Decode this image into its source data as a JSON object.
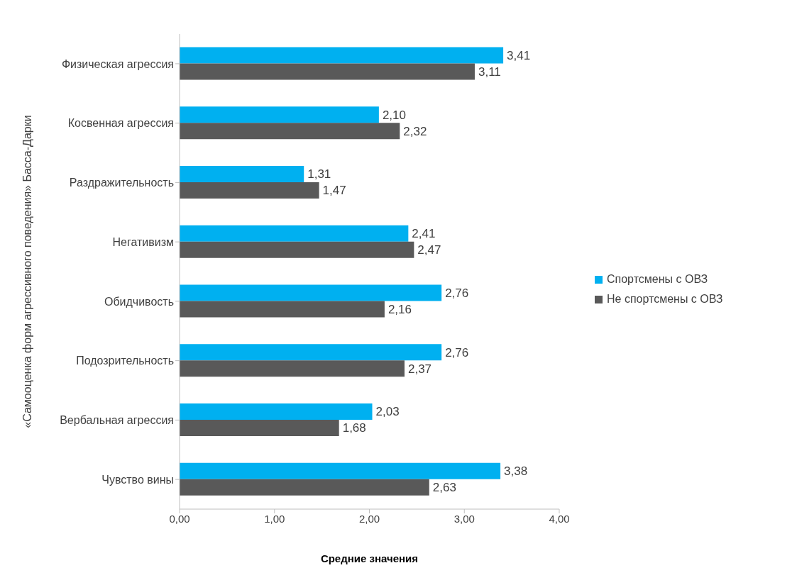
{
  "chart_data": {
    "type": "bar",
    "orientation": "horizontal",
    "ylabel": "«Самооценка форм агрессивного поведения» Басса-Дарки",
    "xlabel": "Средние значения",
    "categories": [
      "Физическая агрессия",
      "Косвенная агрессия",
      "Раздражительность",
      "Негативизм",
      "Обидчивость",
      "Подозрительность",
      "Вербальная агрессия",
      "Чувство вины"
    ],
    "series": [
      {
        "name": "Спортсмены с ОВЗ",
        "color": "#00b0f0",
        "values": [
          3.41,
          2.1,
          1.31,
          2.41,
          2.76,
          2.76,
          2.03,
          3.38
        ],
        "value_labels": [
          "3,41",
          "2,10",
          "1,31",
          "2,41",
          "2,76",
          "2,76",
          "2,03",
          "3,38"
        ]
      },
      {
        "name": "Не спортсмены с ОВЗ",
        "color": "#595959",
        "values": [
          3.11,
          2.32,
          1.47,
          2.47,
          2.16,
          2.37,
          1.68,
          2.63
        ],
        "value_labels": [
          "3,11",
          "2,32",
          "1,47",
          "2,47",
          "2,16",
          "2,37",
          "1,68",
          "2,63"
        ]
      }
    ],
    "xlim": [
      0,
      4
    ],
    "xticks": [
      {
        "value": 0,
        "label": "0,00"
      },
      {
        "value": 1,
        "label": "1,00"
      },
      {
        "value": 2,
        "label": "2,00"
      },
      {
        "value": 3,
        "label": "3,00"
      },
      {
        "value": 4,
        "label": "4,00"
      }
    ],
    "grid": false,
    "legend": "right"
  }
}
